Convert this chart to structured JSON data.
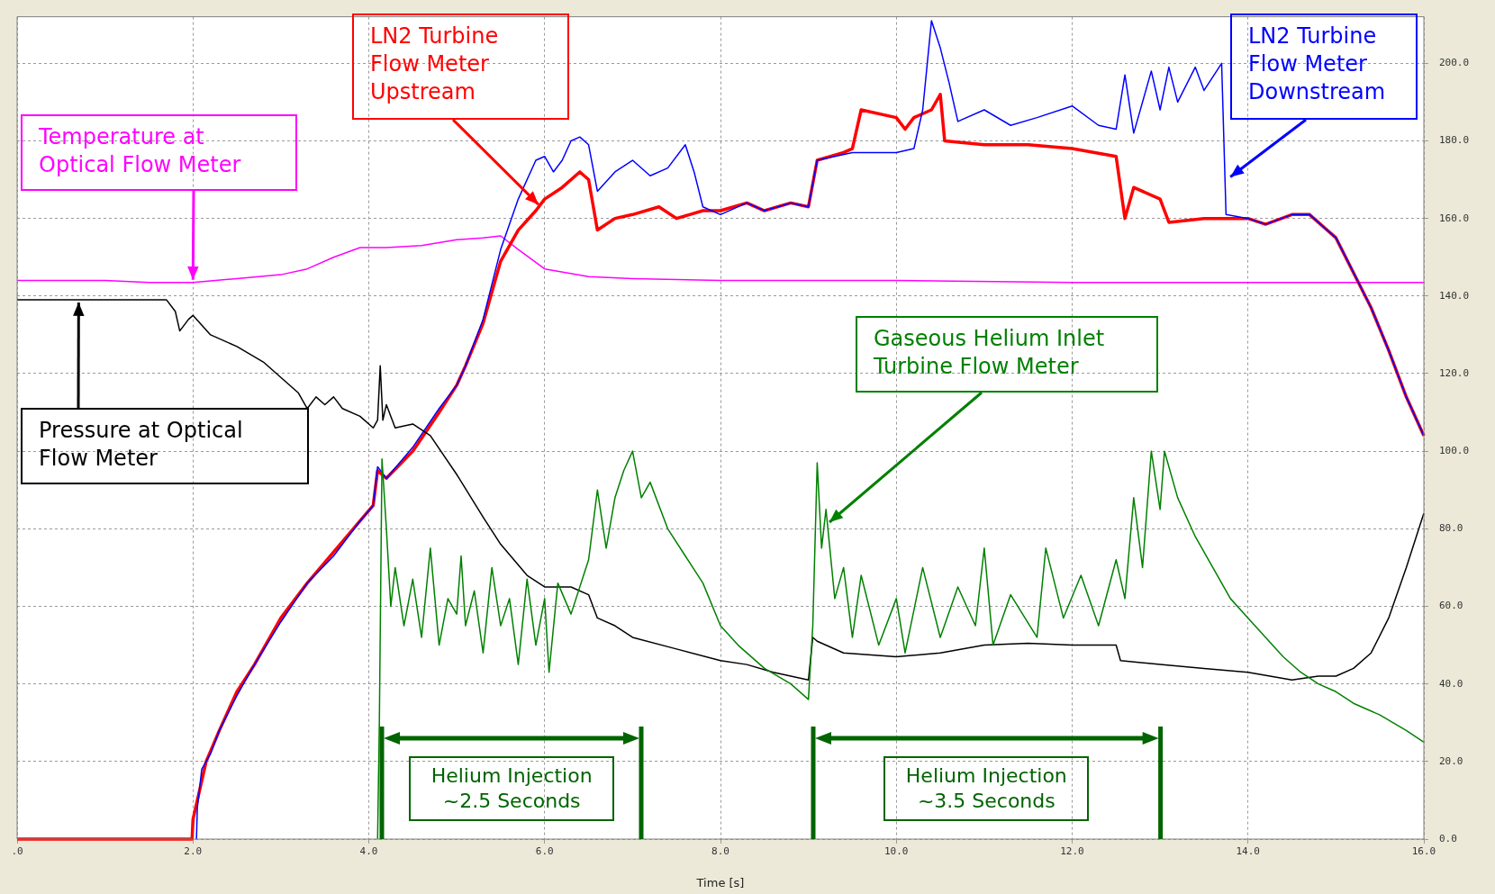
{
  "chart_data": {
    "type": "line",
    "xlabel": "Time [s]",
    "xlim": [
      0,
      16
    ],
    "ylim": [
      0,
      212
    ],
    "xticks": [
      {
        "value": 0,
        "label": ".0"
      },
      {
        "value": 2,
        "label": "2.0"
      },
      {
        "value": 4,
        "label": "4.0"
      },
      {
        "value": 6,
        "label": "6.0"
      },
      {
        "value": 8,
        "label": "8.0"
      },
      {
        "value": 10,
        "label": "10.0"
      },
      {
        "value": 12,
        "label": "12.0"
      },
      {
        "value": 14,
        "label": "14.0"
      },
      {
        "value": 16,
        "label": "16.0"
      }
    ],
    "yticks": [
      {
        "value": 0,
        "label": "0.0"
      },
      {
        "value": 20,
        "label": "20.0"
      },
      {
        "value": 40,
        "label": "40.0"
      },
      {
        "value": 60,
        "label": "60.0"
      },
      {
        "value": 80,
        "label": "80.0"
      },
      {
        "value": 100,
        "label": "100.0"
      },
      {
        "value": 120,
        "label": "120.0"
      },
      {
        "value": 140,
        "label": "140.0"
      },
      {
        "value": 160,
        "label": "160.0"
      },
      {
        "value": 180,
        "label": "180.0"
      },
      {
        "value": 200,
        "label": "200.0"
      }
    ],
    "grid": true,
    "legend": false,
    "marker": "none",
    "line_style": "solid",
    "series": [
      {
        "name": "Temperature at Optical Flow Meter",
        "color": "#ff00ff",
        "x": [
          0,
          1,
          1.5,
          2.0,
          2.5,
          3.0,
          3.3,
          3.6,
          3.9,
          4.2,
          4.6,
          5.0,
          5.3,
          5.5,
          5.7,
          6.0,
          6.5,
          7.0,
          8,
          10,
          12,
          14,
          16
        ],
        "values": [
          144,
          144,
          143.5,
          143.5,
          144.5,
          145.5,
          147,
          150,
          152.5,
          152.5,
          153,
          154.5,
          155,
          155.5,
          152,
          147,
          145,
          144.5,
          144,
          144,
          143.5,
          143.5,
          143.5
        ]
      },
      {
        "name": "LN2 Turbine Flow Meter Upstream",
        "color": "#ff0000",
        "x": [
          0,
          1.99,
          2.0,
          2.05,
          2.15,
          2.3,
          2.5,
          2.7,
          3.0,
          3.3,
          3.6,
          3.9,
          4.05,
          4.1,
          4.2,
          4.5,
          4.8,
          5.0,
          5.1,
          5.3,
          5.5,
          5.7,
          5.9,
          6.0,
          6.2,
          6.4,
          6.5,
          6.6,
          6.8,
          7.0,
          7.3,
          7.5,
          7.8,
          8.0,
          8.3,
          8.5,
          8.8,
          9.0,
          9.1,
          9.4,
          9.5,
          9.6,
          10.0,
          10.1,
          10.2,
          10.4,
          10.5,
          10.55,
          11.0,
          11.5,
          12.0,
          12.5,
          12.6,
          12.7,
          13.0,
          13.1,
          13.5,
          13.8,
          14.0,
          14.2,
          14.5,
          14.7,
          15.0,
          15.2,
          15.4,
          15.6,
          15.8,
          16.0
        ],
        "values": [
          0,
          0,
          5,
          10,
          20,
          28,
          38,
          45,
          57,
          66,
          74,
          82,
          86,
          95,
          93,
          100,
          110,
          117,
          122,
          133,
          149,
          157,
          162,
          165,
          168,
          172,
          170,
          157,
          160,
          161,
          163,
          160,
          162,
          162,
          164,
          162,
          164,
          163,
          175,
          177,
          178,
          188,
          186,
          183,
          186,
          188,
          192,
          180,
          179,
          179,
          178,
          176,
          160,
          168,
          165,
          159,
          160,
          160,
          160,
          158.5,
          161,
          161,
          155,
          146,
          137,
          126,
          114,
          104
        ]
      },
      {
        "name": "LN2 Turbine Flow Meter Downstream",
        "color": "#0000ff",
        "x": [
          2.04,
          2.05,
          2.1,
          2.2,
          2.3,
          2.5,
          2.7,
          3.0,
          3.3,
          3.6,
          3.9,
          4.05,
          4.1,
          4.2,
          4.5,
          4.8,
          5.0,
          5.1,
          5.3,
          5.5,
          5.7,
          5.9,
          6.0,
          6.1,
          6.2,
          6.3,
          6.4,
          6.5,
          6.6,
          6.8,
          7.0,
          7.2,
          7.4,
          7.6,
          7.7,
          7.8,
          8.0,
          8.3,
          8.5,
          8.8,
          9.0,
          9.1,
          9.5,
          10.0,
          10.2,
          10.3,
          10.4,
          10.5,
          10.6,
          10.7,
          11.0,
          11.3,
          11.6,
          12.0,
          12.3,
          12.5,
          12.6,
          12.7,
          12.9,
          13.0,
          13.1,
          13.2,
          13.4,
          13.5,
          13.7,
          13.75,
          14.0,
          14.2,
          14.5,
          14.7,
          15.0,
          15.2,
          15.4,
          15.6,
          15.8,
          16.0
        ],
        "values": [
          0,
          8,
          18,
          22,
          28,
          37,
          45,
          56,
          66,
          73,
          82,
          86,
          96,
          93,
          101,
          111,
          117,
          122,
          134,
          152,
          165,
          175,
          176,
          172,
          175,
          180,
          181,
          179,
          167,
          172,
          175,
          171,
          173,
          179,
          172,
          163,
          161,
          164,
          162,
          164,
          163,
          175,
          177,
          177,
          178,
          188,
          211,
          204,
          195,
          185,
          188,
          184,
          186,
          189,
          184,
          183,
          197,
          182,
          198,
          188,
          199,
          190,
          199,
          193,
          200,
          161,
          160,
          158.5,
          161,
          161,
          155,
          146,
          137,
          126,
          114,
          104
        ]
      },
      {
        "name": "Pressure at Optical Flow Meter",
        "color": "#000000",
        "x": [
          0,
          1.7,
          1.8,
          1.85,
          1.95,
          2.0,
          2.2,
          2.5,
          2.8,
          3.0,
          3.2,
          3.3,
          3.4,
          3.5,
          3.6,
          3.7,
          3.9,
          4.05,
          4.1,
          4.13,
          4.16,
          4.2,
          4.3,
          4.5,
          4.7,
          5.0,
          5.3,
          5.5,
          5.8,
          6.0,
          6.3,
          6.5,
          6.6,
          6.8,
          7.0,
          7.5,
          8.0,
          8.3,
          8.6,
          9.0,
          9.05,
          9.1,
          9.4,
          10.0,
          10.5,
          11.0,
          11.5,
          12.0,
          12.5,
          12.55,
          13.0,
          13.5,
          14.0,
          14.5,
          14.8,
          15.0,
          15.2,
          15.4,
          15.6,
          15.8,
          15.9,
          16.0
        ],
        "values": [
          139,
          139,
          136,
          131,
          134,
          135,
          130,
          127,
          123,
          119,
          115,
          111,
          114,
          112,
          114,
          111,
          109,
          106,
          108,
          122,
          108,
          112,
          106,
          107,
          104,
          94,
          83,
          76,
          68,
          65,
          65,
          63,
          57,
          55,
          52,
          49,
          46,
          45,
          43,
          41,
          52,
          51,
          48,
          47,
          48,
          50,
          50.5,
          50,
          50,
          46,
          45,
          44,
          43,
          41,
          42,
          42,
          44,
          48,
          57,
          70,
          77,
          84
        ]
      },
      {
        "name": "Gaseous Helium Inlet Turbine Flow Meter",
        "color": "#008000",
        "x": [
          4.1,
          4.12,
          4.15,
          4.2,
          4.25,
          4.3,
          4.4,
          4.5,
          4.6,
          4.7,
          4.8,
          4.9,
          5.0,
          5.05,
          5.1,
          5.2,
          5.3,
          5.4,
          5.5,
          5.6,
          5.7,
          5.8,
          5.9,
          6.0,
          6.05,
          6.15,
          6.3,
          6.5,
          6.6,
          6.7,
          6.8,
          6.9,
          7.0,
          7.1,
          7.2,
          7.4,
          7.6,
          7.8,
          8.0,
          8.2,
          8.5,
          8.8,
          9.0,
          9.05,
          9.1,
          9.15,
          9.2,
          9.3,
          9.4,
          9.5,
          9.6,
          9.8,
          10.0,
          10.1,
          10.3,
          10.5,
          10.7,
          10.9,
          11.0,
          11.1,
          11.3,
          11.6,
          11.7,
          11.9,
          12.1,
          12.3,
          12.5,
          12.6,
          12.7,
          12.8,
          12.9,
          13.0,
          13.05,
          13.2,
          13.4,
          13.6,
          13.8,
          14.0,
          14.2,
          14.4,
          14.6,
          14.8,
          15.0,
          15.2,
          15.5,
          15.8,
          16.0
        ],
        "values": [
          0,
          30,
          98,
          80,
          60,
          70,
          55,
          67,
          52,
          75,
          50,
          62,
          58,
          73,
          55,
          64,
          48,
          70,
          55,
          62,
          45,
          67,
          50,
          62,
          43,
          66,
          58,
          72,
          90,
          75,
          88,
          95,
          100,
          88,
          92,
          80,
          73,
          66,
          55,
          50,
          44,
          40,
          36,
          55,
          97,
          75,
          85,
          62,
          70,
          52,
          68,
          50,
          62,
          48,
          70,
          52,
          65,
          55,
          75,
          50,
          63,
          52,
          75,
          57,
          68,
          55,
          72,
          62,
          88,
          70,
          100,
          85,
          100,
          88,
          78,
          70,
          62,
          57,
          52,
          47,
          43,
          40,
          38,
          35,
          32,
          28,
          25
        ]
      }
    ],
    "annotations": [
      "Helium Injection ~2.5 Seconds",
      "Helium Injection ~3.5 Seconds"
    ]
  }
}
